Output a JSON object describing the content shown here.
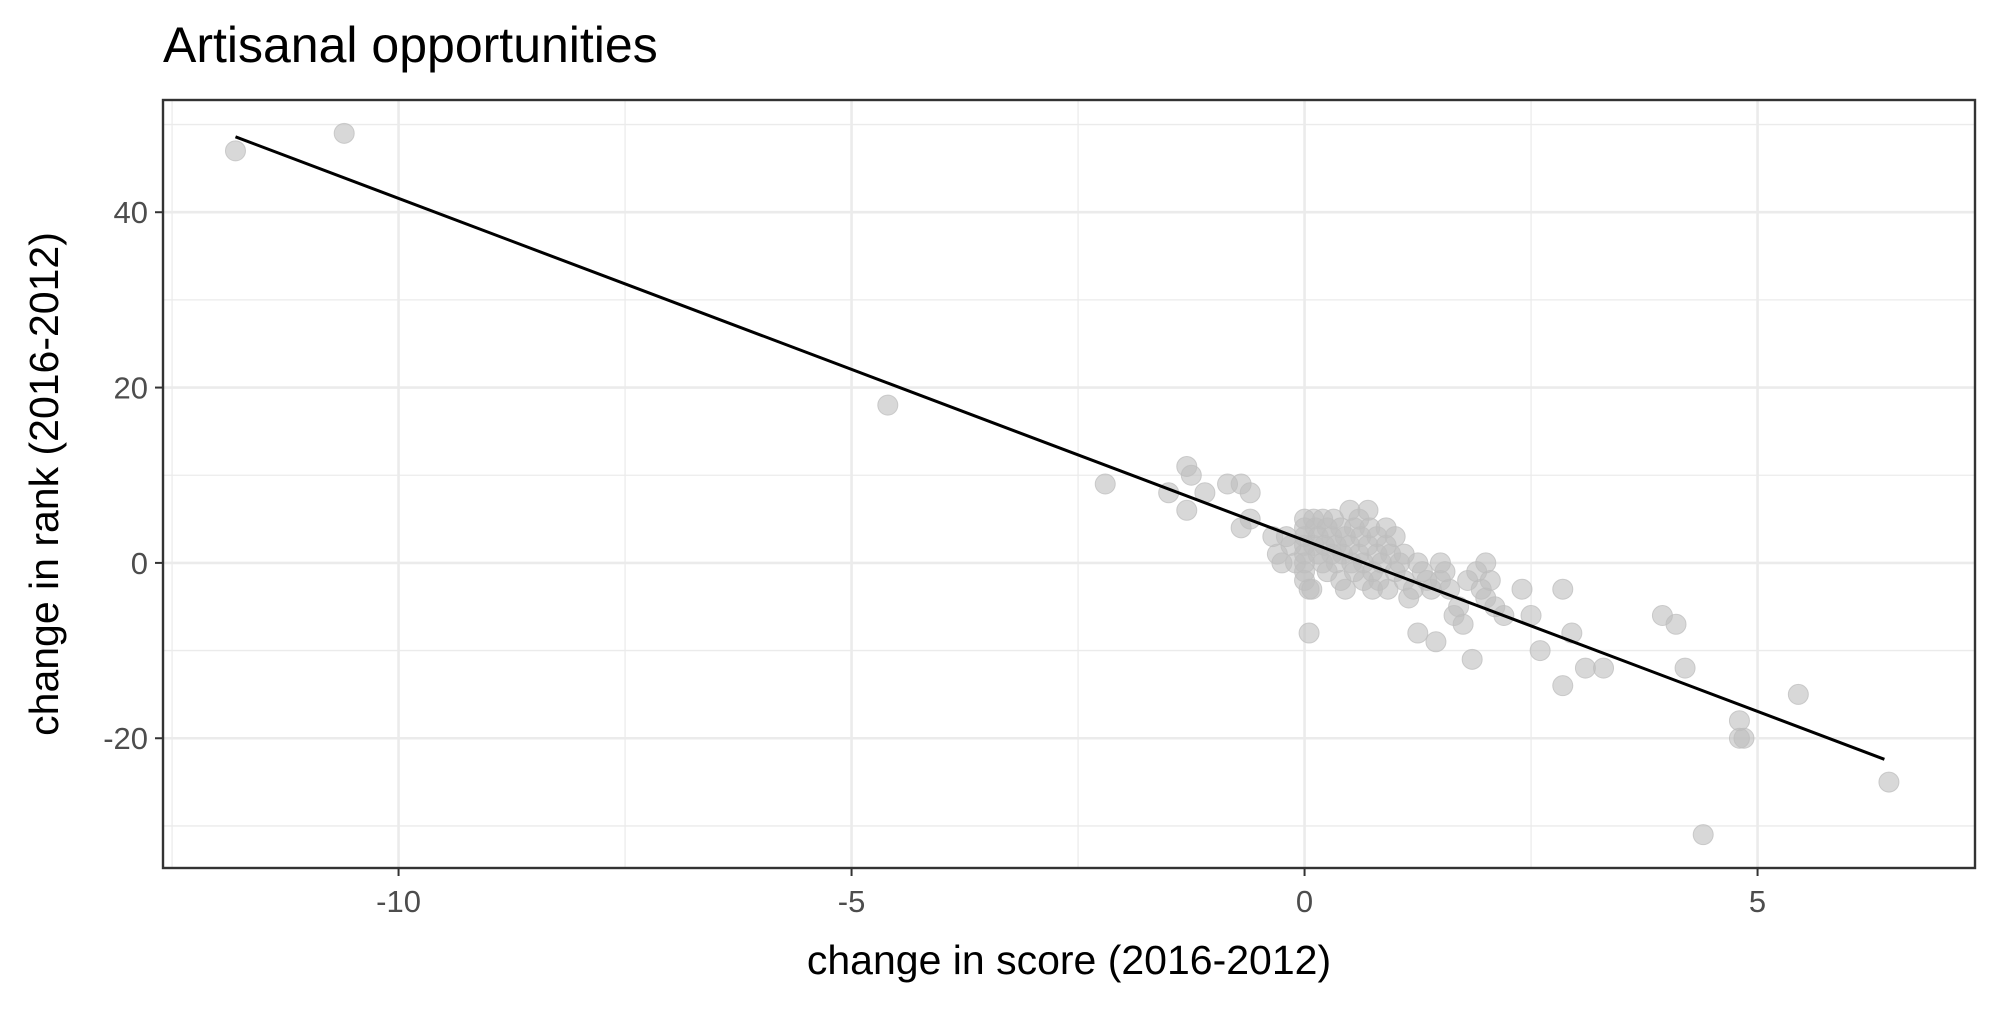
{
  "chart_data": {
    "type": "scatter",
    "title": "Artisanal opportunities",
    "xlabel": "change in score (2016-2012)",
    "ylabel": "change in rank (2016-2012)",
    "xlim": [
      -12.6,
      7.4
    ],
    "ylim": [
      -34.8,
      52.8
    ],
    "x_ticks": [
      -10,
      -5,
      0,
      5
    ],
    "x_tick_labels": [
      "-10",
      "-5",
      "0",
      "5"
    ],
    "y_ticks": [
      -20,
      0,
      20,
      40
    ],
    "y_tick_labels": [
      "-20",
      "0",
      "20",
      "40"
    ],
    "grid": true,
    "point_color": "#bebebe",
    "line_color": "#000000",
    "trend_line": {
      "x": [
        -11.8,
        6.4
      ],
      "y": [
        48.6,
        -22.4
      ]
    },
    "points": [
      [
        -11.8,
        47
      ],
      [
        -10.6,
        49
      ],
      [
        -4.6,
        18
      ],
      [
        -2.2,
        9
      ],
      [
        -1.5,
        8
      ],
      [
        -1.3,
        11
      ],
      [
        -1.3,
        6
      ],
      [
        -1.25,
        10
      ],
      [
        -1.1,
        8
      ],
      [
        -0.85,
        9
      ],
      [
        -0.7,
        9
      ],
      [
        -0.7,
        4
      ],
      [
        -0.6,
        8
      ],
      [
        -0.6,
        5
      ],
      [
        -0.35,
        3
      ],
      [
        -0.3,
        1
      ],
      [
        -0.25,
        0
      ],
      [
        -0.2,
        3
      ],
      [
        -0.15,
        2
      ],
      [
        -0.1,
        0
      ],
      [
        0.0,
        5
      ],
      [
        0.0,
        4
      ],
      [
        0.0,
        3
      ],
      [
        0.0,
        2
      ],
      [
        0.0,
        1
      ],
      [
        0.0,
        0
      ],
      [
        0.0,
        -1
      ],
      [
        0.0,
        -2
      ],
      [
        0.05,
        -3
      ],
      [
        0.05,
        -8
      ],
      [
        0.08,
        -3
      ],
      [
        0.1,
        5
      ],
      [
        0.1,
        2
      ],
      [
        0.12,
        4
      ],
      [
        0.15,
        1
      ],
      [
        0.15,
        3
      ],
      [
        0.2,
        5
      ],
      [
        0.2,
        0
      ],
      [
        0.22,
        2
      ],
      [
        0.25,
        4
      ],
      [
        0.25,
        -1
      ],
      [
        0.3,
        1
      ],
      [
        0.3,
        3
      ],
      [
        0.32,
        5
      ],
      [
        0.35,
        0
      ],
      [
        0.35,
        2
      ],
      [
        0.4,
        4
      ],
      [
        0.4,
        -2
      ],
      [
        0.42,
        1
      ],
      [
        0.45,
        3
      ],
      [
        0.45,
        -3
      ],
      [
        0.5,
        6
      ],
      [
        0.5,
        2
      ],
      [
        0.52,
        0
      ],
      [
        0.55,
        4
      ],
      [
        0.55,
        -1
      ],
      [
        0.6,
        5
      ],
      [
        0.6,
        1
      ],
      [
        0.62,
        3
      ],
      [
        0.65,
        -2
      ],
      [
        0.65,
        0
      ],
      [
        0.7,
        6
      ],
      [
        0.7,
        2
      ],
      [
        0.72,
        4
      ],
      [
        0.75,
        -1
      ],
      [
        0.75,
        -3
      ],
      [
        0.8,
        3
      ],
      [
        0.8,
        1
      ],
      [
        0.82,
        -2
      ],
      [
        0.85,
        0
      ],
      [
        0.9,
        4
      ],
      [
        0.9,
        2
      ],
      [
        0.92,
        -3
      ],
      [
        0.95,
        1
      ],
      [
        1.0,
        3
      ],
      [
        1.0,
        -1
      ],
      [
        1.05,
        0
      ],
      [
        1.1,
        1
      ],
      [
        1.1,
        -2
      ],
      [
        1.15,
        -4
      ],
      [
        1.2,
        -3
      ],
      [
        1.25,
        0
      ],
      [
        1.25,
        -8
      ],
      [
        1.3,
        -1
      ],
      [
        1.35,
        -2
      ],
      [
        1.4,
        -3
      ],
      [
        1.45,
        -9
      ],
      [
        1.5,
        0
      ],
      [
        1.5,
        -2
      ],
      [
        1.55,
        -1
      ],
      [
        1.6,
        -3
      ],
      [
        1.65,
        -6
      ],
      [
        1.7,
        -5
      ],
      [
        1.75,
        -7
      ],
      [
        1.8,
        -2
      ],
      [
        1.85,
        -11
      ],
      [
        1.9,
        -1
      ],
      [
        1.95,
        -3
      ],
      [
        2.0,
        0
      ],
      [
        2.0,
        -4
      ],
      [
        2.05,
        -2
      ],
      [
        2.1,
        -5
      ],
      [
        2.2,
        -6
      ],
      [
        2.4,
        -3
      ],
      [
        2.5,
        -6
      ],
      [
        2.6,
        -10
      ],
      [
        2.85,
        -14
      ],
      [
        2.85,
        -3
      ],
      [
        2.95,
        -8
      ],
      [
        3.1,
        -12
      ],
      [
        3.3,
        -12
      ],
      [
        3.95,
        -6
      ],
      [
        4.1,
        -7
      ],
      [
        4.2,
        -12
      ],
      [
        4.4,
        -31
      ],
      [
        4.8,
        -18
      ],
      [
        4.85,
        -20
      ],
      [
        4.8,
        -20
      ],
      [
        5.45,
        -15
      ],
      [
        6.45,
        -25
      ]
    ]
  }
}
